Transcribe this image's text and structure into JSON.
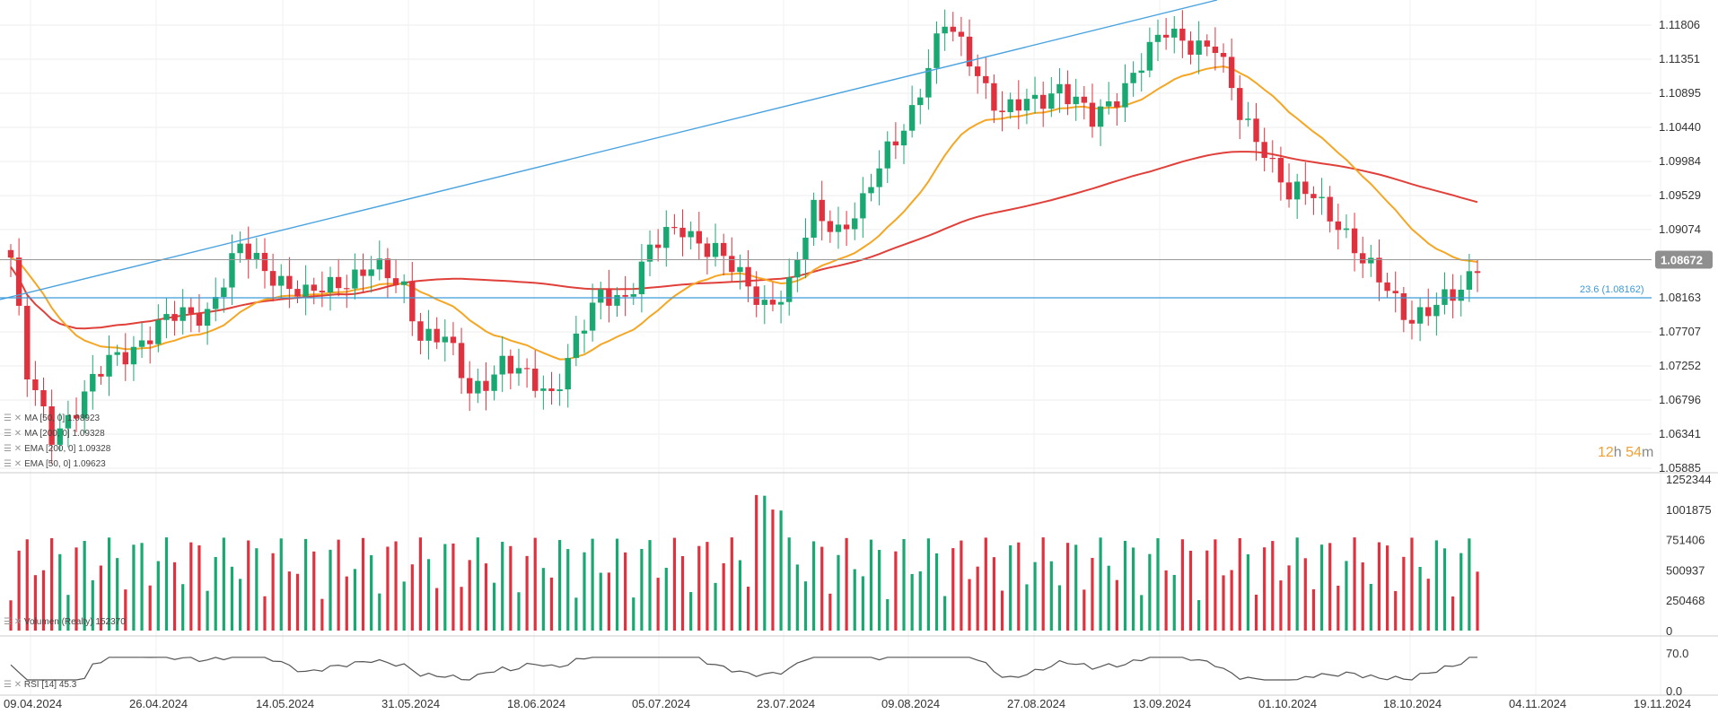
{
  "chart_data": {
    "type": "candlestick",
    "symbol_price_axis": [
      "1.11806",
      "1.11351",
      "1.10895",
      "1.10440",
      "1.09984",
      "1.09529",
      "1.09074",
      "1.08163",
      "1.07707",
      "1.07252",
      "1.06796",
      "1.06341",
      "1.05885"
    ],
    "price_axis_values": [
      1.11806,
      1.11351,
      1.10895,
      1.1044,
      1.09984,
      1.09529,
      1.09074,
      1.08163,
      1.07707,
      1.07252,
      1.06796,
      1.06341,
      1.05885
    ],
    "current_price": "1.08672",
    "fib_label": "23.6 (1.08162)",
    "fib_level": 1.08162,
    "timer": {
      "hours": "12",
      "h": "h",
      "minutes": "54",
      "m": "m"
    },
    "x_labels": [
      "09.04.2024",
      "26.04.2024",
      "14.05.2024",
      "31.05.2024",
      "18.06.2024",
      "05.07.2024",
      "23.07.2024",
      "09.08.2024",
      "27.08.2024",
      "13.09.2024",
      "01.10.2024",
      "18.10.2024",
      "04.11.2024",
      "19.11.2024"
    ],
    "legend": [
      {
        "name": "MA [50, 0] 1.08923",
        "display": "MA [50, 0] 1.08923"
      },
      {
        "name": "MA [200, 0] 1.09328",
        "display": "MA [200, 0] 1.09328"
      },
      {
        "name": "EMA [200, 0] 1.09328",
        "display": "EMA [200, 0] 1.09328"
      },
      {
        "name": "EMA [50, 0] 1.09623",
        "display": "EMA [50, 0] 1.09623"
      }
    ],
    "volume_axis": [
      "1252344",
      "1001875",
      "751406",
      "500937",
      "250468",
      "0"
    ],
    "volume_axis_values": [
      1252344,
      1001875,
      751406,
      500937,
      250468,
      0
    ],
    "volume_legend": "Volumen (Realty)  152370",
    "rsi_axis": [
      "70.0",
      "0.0"
    ],
    "rsi_legend": "RSI [14]  45.3",
    "colors": {
      "up": "#1aa872",
      "down": "#e0323e",
      "ema50": "#f5a623",
      "ma200": "#e0403a",
      "trend": "#4aa3df",
      "fib": "#3a9ad9",
      "price_line": "#999999"
    }
  }
}
